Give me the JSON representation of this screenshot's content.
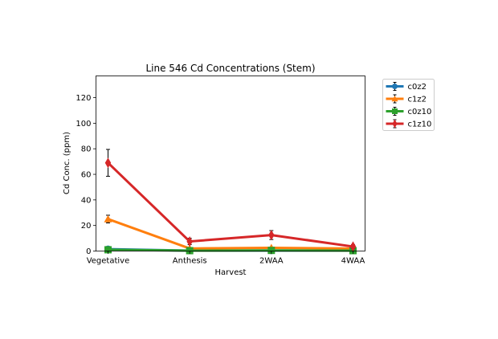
{
  "chart_data": {
    "type": "line",
    "title": "Line 546 Cd Concentrations (Stem)",
    "xlabel": "Harvest",
    "ylabel": "Cd Conc. (ppm)",
    "categories": [
      "Vegetative",
      "Anthesis",
      "2WAA",
      "4WAA"
    ],
    "ylim": [
      0,
      137
    ],
    "yticks": [
      0,
      20,
      40,
      60,
      80,
      100,
      120
    ],
    "legend_position": "outside-right-top",
    "grid": false,
    "series": [
      {
        "name": "c0z2",
        "color": "#1f77b4",
        "marker": "circle",
        "values": [
          1.5,
          0.3,
          0.4,
          0.3
        ],
        "errors": [
          0.5,
          0.2,
          0.2,
          0.2
        ]
      },
      {
        "name": "c1z2",
        "color": "#ff7f0e",
        "marker": "triangle",
        "values": [
          25,
          2,
          2.5,
          2
        ],
        "errors": [
          3,
          0.5,
          0.5,
          0.5
        ]
      },
      {
        "name": "c0z10",
        "color": "#2ca02c",
        "marker": "square",
        "values": [
          1,
          0.3,
          0.5,
          0.3
        ],
        "errors": [
          0.5,
          0.2,
          0.2,
          0.2
        ]
      },
      {
        "name": "c1z10",
        "color": "#d62728",
        "marker": "diamond",
        "values": [
          69,
          7.5,
          12.5,
          3.5
        ],
        "errors": [
          10.5,
          2.5,
          3.5,
          1.5
        ]
      }
    ]
  }
}
